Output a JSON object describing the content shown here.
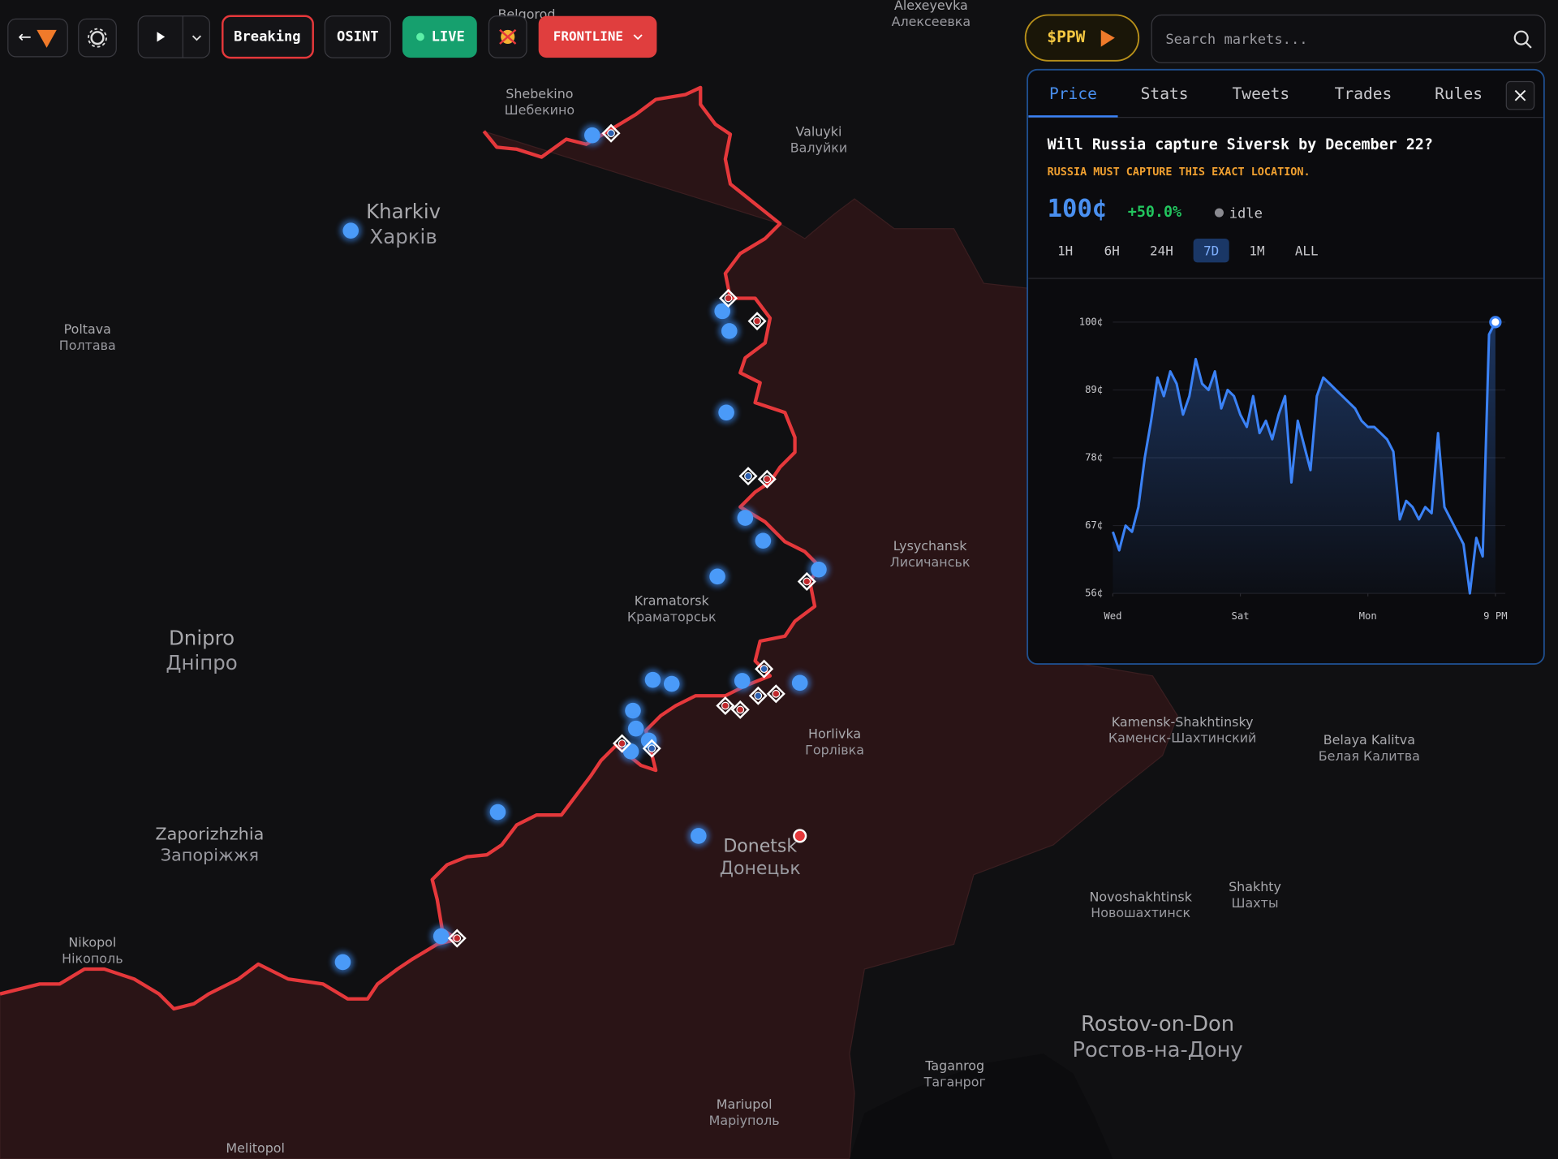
{
  "toolbar": {
    "buttons": [
      "Breaking",
      "OSINT",
      "LIVE",
      "FRONTLINE"
    ],
    "token": "$PPW",
    "search_placeholder": "Search markets..."
  },
  "map": {
    "labels": [
      {
        "en": "Belgorod"
      },
      {
        "en": "Alexeyevka",
        "local": "Алексеевка"
      },
      {
        "en": "Shebekino",
        "local": "Шебекино"
      },
      {
        "en": "Valuyki",
        "local": "Валуйки"
      },
      {
        "en": "Kharkiv",
        "local": "Харків"
      },
      {
        "en": "Poltava",
        "local": "Полтава"
      },
      {
        "en": "Dnipro",
        "local": "Дніпро"
      },
      {
        "en": "Kramatorsk",
        "local": "Краматорськ"
      },
      {
        "en": "Lysychansk",
        "local": "Лисичанськ"
      },
      {
        "en": "Horlivka",
        "local": "Горлівка"
      },
      {
        "en": "Donetsk",
        "local": "Донецьк"
      },
      {
        "en": "Kamensk-Shakhtinsky",
        "local": "Каменск-Шахтинский"
      },
      {
        "en": "Belaya Kalitva",
        "local": "Белая Калитва"
      },
      {
        "en": "Zaporizhzhia",
        "local": "Запоріжжя"
      },
      {
        "en": "Nikopol",
        "local": "Нікополь"
      },
      {
        "en": "Shakhty",
        "local": "Шахты"
      },
      {
        "en": "Novoshakhtinsk",
        "local": "Новошахтинск"
      },
      {
        "en": "Rostov-on-Don",
        "local": "Ростов-на-Дону"
      },
      {
        "en": "Taganrog",
        "local": "Таганрог"
      },
      {
        "en": "Mariupol",
        "local": "Маріуполь"
      },
      {
        "en": "Melitopol"
      }
    ]
  },
  "panel": {
    "tabs": [
      "Price",
      "Stats",
      "Tweets",
      "Trades",
      "Rules"
    ],
    "question": "Will Russia capture Siversk by December 22?",
    "note": "RUSSIA MUST CAPTURE THIS EXACT LOCATION.",
    "price": "100¢",
    "change": "+50.0%",
    "status": "idle",
    "ranges": [
      "1H",
      "6H",
      "24H",
      "7D",
      "1M",
      "ALL"
    ]
  },
  "chart_data": {
    "type": "line",
    "x": [
      0,
      1,
      2,
      3,
      4,
      5,
      6,
      7,
      8,
      9,
      10,
      11,
      12,
      13,
      14,
      15,
      16,
      17,
      18,
      19,
      20,
      21,
      22,
      23,
      24,
      25,
      26,
      27,
      28,
      29,
      30,
      31,
      32,
      33,
      34,
      35,
      36,
      37,
      38,
      39,
      40,
      41,
      42,
      43,
      44,
      45,
      46,
      47,
      48,
      49,
      50,
      51,
      52,
      53,
      54,
      55,
      56,
      57,
      58,
      59,
      60
    ],
    "series": [
      {
        "color": "#3b82f6",
        "values": [
          66,
          63,
          67,
          66,
          70,
          78,
          84,
          91,
          88,
          92,
          90,
          85,
          88,
          94,
          90,
          89,
          92,
          86,
          89,
          88,
          85,
          83,
          88,
          82,
          84,
          81,
          85,
          88,
          74,
          84,
          80,
          76,
          88,
          91,
          90,
          89,
          88,
          87,
          86,
          84,
          83,
          83,
          82,
          81,
          79,
          68,
          71,
          70,
          68,
          70,
          69,
          82,
          70,
          68,
          66,
          64,
          56,
          65,
          62,
          98,
          100
        ]
      }
    ],
    "xlim": [
      0,
      60
    ],
    "xticks": [
      {
        "value": 0,
        "label": "Wed"
      },
      {
        "value": 20,
        "label": "Sat"
      },
      {
        "value": 40,
        "label": "Mon"
      },
      {
        "value": 60,
        "label": "9 PM"
      }
    ],
    "ylim": [
      56,
      100
    ],
    "yticks": [
      {
        "value": 100,
        "label": "100¢"
      },
      {
        "value": 89,
        "label": "89¢"
      },
      {
        "value": 78,
        "label": "78¢"
      },
      {
        "value": 67,
        "label": "67¢"
      },
      {
        "value": 56,
        "label": "56¢"
      }
    ],
    "grid": true
  }
}
